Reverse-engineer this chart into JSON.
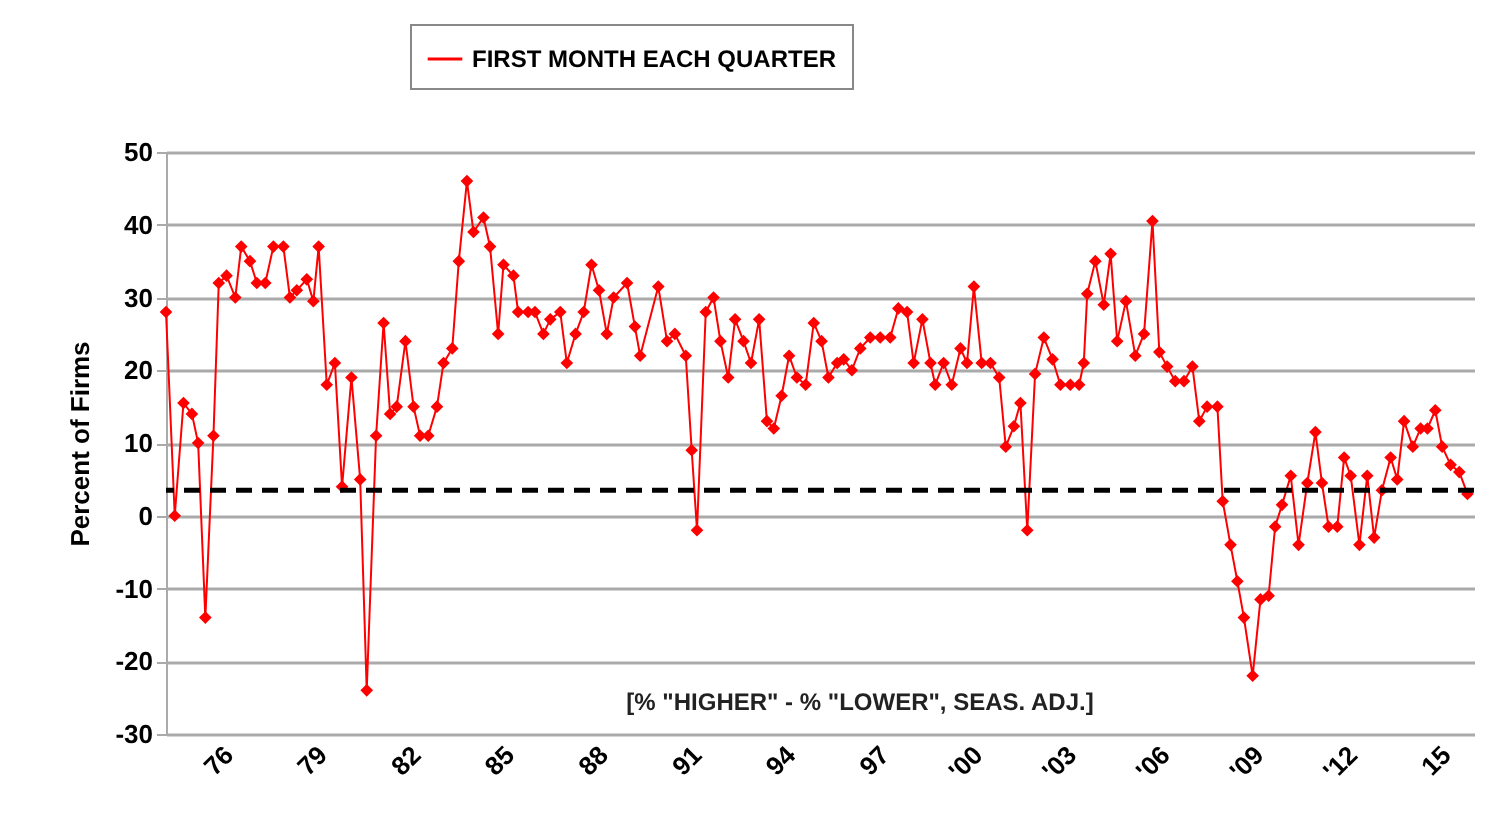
{
  "chart_data": {
    "type": "line",
    "ylabel": "Percent of Firms",
    "x": [
      1974.0,
      1974.28,
      1974.56,
      1974.83,
      1975.03,
      1975.26,
      1975.52,
      1975.69,
      1975.94,
      1976.22,
      1976.41,
      1976.69,
      1976.91,
      1977.18,
      1977.44,
      1977.76,
      1977.97,
      1978.19,
      1978.51,
      1978.72,
      1978.89,
      1979.15,
      1979.41,
      1979.64,
      1979.94,
      1980.22,
      1980.43,
      1980.73,
      1980.97,
      1981.18,
      1981.39,
      1981.67,
      1981.93,
      1982.14,
      1982.4,
      1982.68,
      1982.89,
      1983.17,
      1983.38,
      1983.64,
      1983.85,
      1984.17,
      1984.38,
      1984.64,
      1984.81,
      1985.13,
      1985.28,
      1985.6,
      1985.82,
      1986.09,
      1986.31,
      1986.63,
      1986.84,
      1987.12,
      1987.38,
      1987.63,
      1987.87,
      1988.12,
      1988.34,
      1988.77,
      1989.02,
      1989.19,
      1989.77,
      1990.05,
      1990.3,
      1990.65,
      1990.84,
      1991.01,
      1991.29,
      1991.54,
      1991.76,
      1992.01,
      1992.23,
      1992.5,
      1992.74,
      1993.0,
      1993.25,
      1993.47,
      1993.72,
      1993.96,
      1994.21,
      1994.49,
      1994.75,
      1995.0,
      1995.22,
      1995.5,
      1995.71,
      1995.97,
      1996.24,
      1996.56,
      1996.88,
      1997.2,
      1997.46,
      1997.74,
      1997.95,
      1998.23,
      1998.49,
      1998.64,
      1998.91,
      1999.17,
      1999.45,
      1999.66,
      1999.88,
      2000.13,
      2000.41,
      2000.69,
      2000.9,
      2001.16,
      2001.37,
      2001.59,
      2001.84,
      2002.12,
      2002.4,
      2002.65,
      2002.97,
      2003.25,
      2003.4,
      2003.51,
      2003.77,
      2004.04,
      2004.26,
      2004.47,
      2004.75,
      2005.05,
      2005.33,
      2005.6,
      2005.82,
      2006.07,
      2006.33,
      2006.61,
      2006.88,
      2007.1,
      2007.35,
      2007.68,
      2007.85,
      2008.1,
      2008.32,
      2008.53,
      2008.81,
      2009.06,
      2009.32,
      2009.53,
      2009.75,
      2010.03,
      2010.28,
      2010.56,
      2010.82,
      2011.03,
      2011.24,
      2011.52,
      2011.74,
      2011.95,
      2012.23,
      2012.48,
      2012.7,
      2012.95,
      2013.23,
      2013.44,
      2013.66,
      2013.94,
      2014.19,
      2014.41,
      2014.66,
      2014.88,
      2015.15,
      2015.43,
      2015.69
    ],
    "series": [
      {
        "name": "FIRST MONTH EACH QUARTER",
        "color": "#ff0000",
        "values": [
          28,
          0,
          15.5,
          14,
          10,
          -14,
          11,
          32,
          33,
          30,
          37,
          35,
          32,
          32,
          37,
          37,
          30,
          31,
          32.5,
          29.5,
          37,
          18,
          21,
          4,
          19,
          5,
          -24,
          11,
          26.5,
          14,
          15,
          24,
          15,
          11,
          11,
          15,
          21,
          23,
          35,
          46,
          39,
          41,
          37,
          25,
          34.5,
          33,
          28,
          28,
          28,
          25,
          27,
          28,
          21,
          25,
          28,
          34.5,
          31,
          25,
          30,
          32,
          26,
          22,
          31.5,
          24,
          25,
          22,
          9,
          -2,
          28,
          30,
          24,
          19,
          27,
          24,
          21,
          27,
          13,
          12,
          16.5,
          22,
          19,
          18,
          26.5,
          24,
          19,
          21,
          21.5,
          20,
          23,
          24.5,
          24.5,
          24.5,
          28.5,
          28,
          21,
          27,
          21,
          18,
          21,
          18,
          23,
          21,
          31.5,
          21,
          21,
          19,
          9.5,
          12.3,
          15.5,
          -2,
          19.5,
          24.5,
          21.5,
          18,
          18,
          18,
          21,
          30.5,
          35,
          29,
          36,
          24,
          29.5,
          22,
          25,
          40.5,
          22.5,
          20.5,
          18.5,
          18.5,
          20.5,
          13,
          15,
          15,
          2,
          -4,
          -9,
          -14,
          -22,
          -11.5,
          -11,
          -1.5,
          1.5,
          5.5,
          -4,
          4.5,
          11.5,
          4.5,
          -1.5,
          -1.5,
          8,
          5.5,
          -4,
          5.5,
          -3,
          3.5,
          8,
          5,
          13,
          9.5,
          12,
          12,
          14.5,
          9.5,
          7,
          6,
          3
        ]
      }
    ],
    "xlim": [
      1974,
      2015.9
    ],
    "xticks": [
      {
        "value": 1976,
        "label": "76"
      },
      {
        "value": 1979,
        "label": "79"
      },
      {
        "value": 1982,
        "label": "82"
      },
      {
        "value": 1985,
        "label": "85"
      },
      {
        "value": 1988,
        "label": "88"
      },
      {
        "value": 1991,
        "label": "91"
      },
      {
        "value": 1994,
        "label": "94"
      },
      {
        "value": 1997,
        "label": "97"
      },
      {
        "value": 2000,
        "label": "'00"
      },
      {
        "value": 2003,
        "label": "'03"
      },
      {
        "value": 2006,
        "label": "'06"
      },
      {
        "value": 2009,
        "label": "'09"
      },
      {
        "value": 2012,
        "label": "'12"
      },
      {
        "value": 2015,
        "label": "15"
      }
    ],
    "ylim": [
      -30,
      50
    ],
    "yticks": [
      -30,
      -20,
      -10,
      0,
      10,
      20,
      30,
      40,
      50
    ],
    "ref_lines": [
      {
        "axis": "y",
        "value": 3.5,
        "color": "#000000",
        "line_style": "dashed"
      }
    ],
    "annotations": [
      "[% \"HIGHER\" - % \"LOWER\", SEAS. ADJ.]"
    ],
    "grid": "y",
    "legend": "top",
    "marker": "diamond",
    "line_style": "solid"
  }
}
